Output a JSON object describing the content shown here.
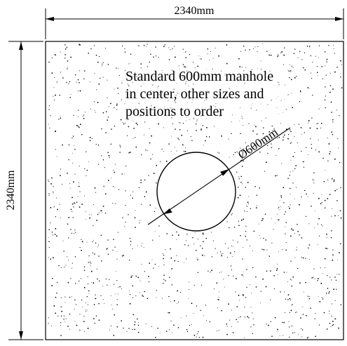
{
  "dimensions": {
    "width_label": "2340mm",
    "height_label": "2340mm",
    "diameter_label": "Ø600mm"
  },
  "note": {
    "lines": [
      "Standard 600mm manhole",
      "in center, other sizes and",
      "positions to order"
    ]
  },
  "colors": {
    "line": "#000000",
    "background": "#ffffff",
    "speckle": "#000000"
  }
}
